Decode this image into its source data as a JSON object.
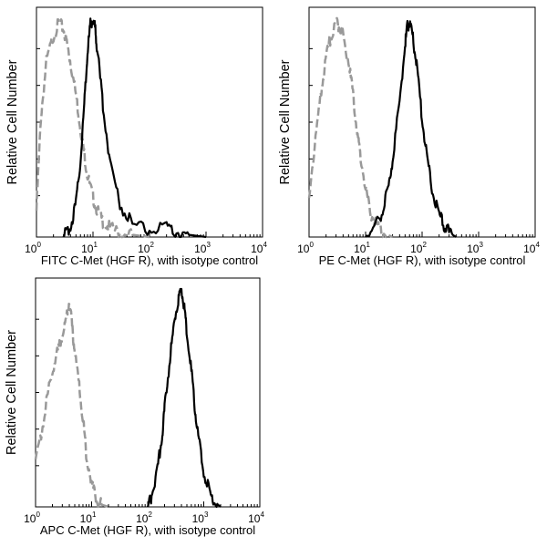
{
  "chart_data": [
    {
      "type": "line",
      "xscale": "log",
      "xlim": [
        1,
        10000
      ],
      "xticks": [
        "10",
        "10",
        "10",
        "10",
        "10"
      ],
      "xtick_exponents": [
        "0",
        "1",
        "2",
        "3",
        "4"
      ],
      "xlabel": "FITC  C-Met (HGF R),  with isotype control",
      "ylabel": "Relative Cell Number",
      "series": [
        {
          "color": "#999999",
          "style": "dashed",
          "x": [
            1.0,
            1.2,
            1.5,
            2.0,
            2.5,
            3.0,
            3.5,
            4.0,
            5.0,
            6.0,
            7.0,
            8.0,
            10,
            12,
            15,
            20,
            30,
            50,
            100
          ],
          "y": [
            0.12,
            0.55,
            0.8,
            0.92,
            0.98,
            0.95,
            0.88,
            0.8,
            0.65,
            0.5,
            0.38,
            0.28,
            0.18,
            0.12,
            0.07,
            0.04,
            0.02,
            0.01,
            0.0
          ]
        },
        {
          "color": "#000000",
          "style": "solid",
          "x": [
            3.0,
            4.0,
            5.0,
            6.0,
            7.0,
            8.0,
            9.0,
            10,
            11,
            12,
            15,
            20,
            30,
            50,
            100,
            200,
            300,
            500,
            1000
          ],
          "y": [
            0.0,
            0.05,
            0.15,
            0.35,
            0.6,
            0.85,
            0.97,
            1.0,
            0.95,
            0.85,
            0.6,
            0.35,
            0.15,
            0.06,
            0.03,
            0.04,
            0.02,
            0.01,
            0.0
          ]
        }
      ]
    },
    {
      "type": "line",
      "xscale": "log",
      "xlim": [
        1,
        10000
      ],
      "xticks": [
        "10",
        "10",
        "10",
        "10",
        "10"
      ],
      "xtick_exponents": [
        "0",
        "1",
        "2",
        "3",
        "4"
      ],
      "xlabel": "PE  C-Met (HGF R),  with isotype control",
      "ylabel": "Relative Cell Number",
      "series": [
        {
          "color": "#999999",
          "style": "dashed",
          "x": [
            1.0,
            1.3,
            1.7,
            2.0,
            2.5,
            3.0,
            3.5,
            4.0,
            5.0,
            6.0,
            7.0,
            8.0,
            10,
            12,
            15,
            20,
            30
          ],
          "y": [
            0.2,
            0.45,
            0.7,
            0.82,
            0.93,
            0.98,
            0.96,
            0.92,
            0.8,
            0.65,
            0.5,
            0.38,
            0.22,
            0.12,
            0.06,
            0.02,
            0.0
          ]
        },
        {
          "color": "#000000",
          "style": "solid",
          "x": [
            10,
            15,
            20,
            25,
            30,
            40,
            50,
            55,
            60,
            70,
            80,
            100,
            120,
            150,
            200,
            250,
            300,
            400
          ],
          "y": [
            0.0,
            0.05,
            0.12,
            0.22,
            0.35,
            0.62,
            0.88,
            0.96,
            0.98,
            0.9,
            0.78,
            0.55,
            0.38,
            0.22,
            0.1,
            0.05,
            0.02,
            0.0
          ]
        }
      ]
    },
    {
      "type": "line",
      "xscale": "log",
      "xlim": [
        1,
        10000
      ],
      "xticks": [
        "10",
        "10",
        "10",
        "10",
        "10"
      ],
      "xtick_exponents": [
        "0",
        "1",
        "2",
        "3",
        "4"
      ],
      "xlabel": "APC C-Met (HGF R), with isotype control",
      "ylabel": "Relative Cell Number",
      "series": [
        {
          "color": "#999999",
          "style": "dashed",
          "x": [
            1.0,
            1.3,
            1.6,
            2.0,
            2.5,
            3.0,
            3.5,
            4.0,
            4.5,
            5.0,
            6.0,
            7.0,
            8.0,
            10,
            12,
            15,
            20
          ],
          "y": [
            0.2,
            0.35,
            0.5,
            0.62,
            0.72,
            0.78,
            0.85,
            0.95,
            0.82,
            0.72,
            0.55,
            0.4,
            0.25,
            0.1,
            0.04,
            0.01,
            0.0
          ]
        },
        {
          "color": "#000000",
          "style": "solid",
          "x": [
            100,
            120,
            150,
            180,
            200,
            250,
            300,
            350,
            400,
            450,
            500,
            600,
            700,
            800,
            1000,
            1300,
            1600,
            2000
          ],
          "y": [
            0.0,
            0.06,
            0.18,
            0.32,
            0.45,
            0.68,
            0.85,
            0.95,
            1.0,
            0.92,
            0.8,
            0.62,
            0.45,
            0.32,
            0.16,
            0.06,
            0.02,
            0.0
          ]
        }
      ]
    }
  ]
}
